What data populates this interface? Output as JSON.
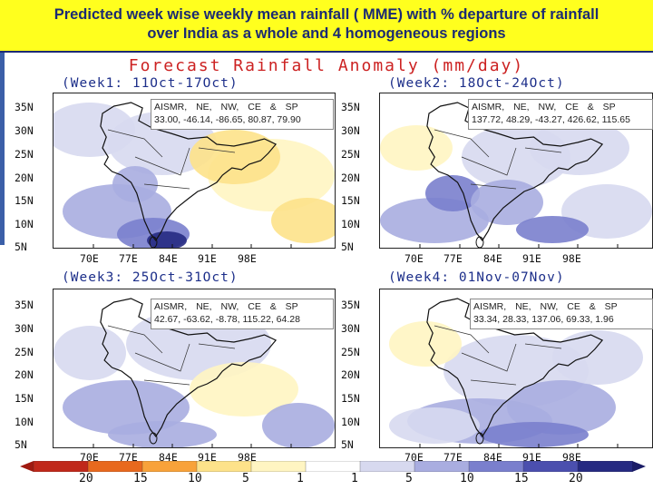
{
  "slide": {
    "title_line1": "Predicted week wise weekly mean rainfall  ( MME) with % departure of rainfall",
    "title_line2": "over India as a whole and 4 homogeneous regions",
    "banner_color": "#ffff1e",
    "title_color": "#1b2a73"
  },
  "figure": {
    "main_title": "Forecast Rainfall Anomaly (mm/day)",
    "lat_labels": [
      "35N",
      "30N",
      "25N",
      "20N",
      "15N",
      "10N",
      "5N"
    ],
    "lon_labels": [
      "70E",
      "77E",
      "84E",
      "91E",
      "98E"
    ],
    "colorbar_labels": [
      "20",
      "15",
      "10",
      "5",
      "1",
      "1",
      "5",
      "10",
      "15",
      "20"
    ],
    "colorbar_colors": [
      "#c0281a",
      "#e8691e",
      "#f8a23a",
      "#fde28a",
      "#fff5c2",
      "#ffffff",
      "#d7d9ef",
      "#a9ade0",
      "#7a7fcd",
      "#4b4fae",
      "#262a82"
    ]
  },
  "panels": [
    {
      "week_label": "(Week1: 11Oct-17Oct)",
      "stats_header": "AISMR, NE, NW, CE & SP",
      "stats_values": "33.00, -46.14, -86.65, 80.87, 79.90"
    },
    {
      "week_label": "(Week2: 18Oct-24Oct)",
      "stats_header": "AISMR, NE, NW, CE & SP",
      "stats_values": "137.72, 48.29, -43.27, 426.62, 115.65"
    },
    {
      "week_label": "(Week3: 25Oct-31Oct)",
      "stats_header": "AISMR, NE, NW, CE & SP",
      "stats_values": "42.67, -63.62, -8.78, 115.22, 64.28"
    },
    {
      "week_label": "(Week4: 01Nov-07Nov)",
      "stats_header": "AISMR, NE, NW, CE & SP",
      "stats_values": "33.34, 28.33, 137.06, 69.33, 1.96"
    }
  ]
}
